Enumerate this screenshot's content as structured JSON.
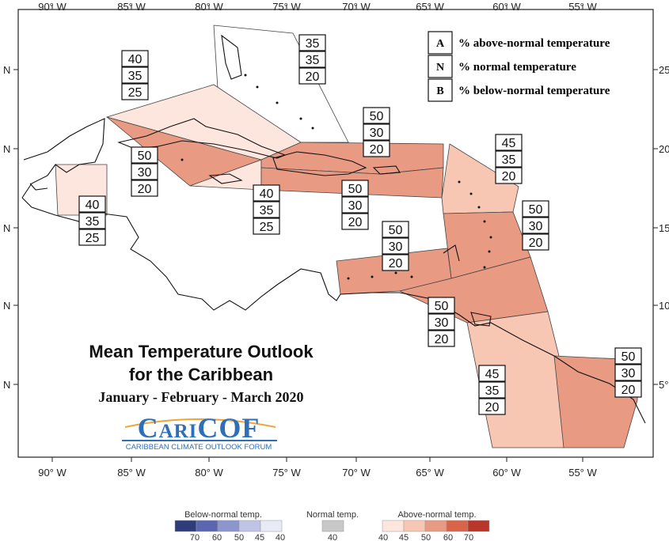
{
  "title_line1": "Mean Temperature Outlook",
  "title_line2": "for the Caribbean",
  "period": "January - February - March 2020",
  "logo_text": "CariCOF",
  "logo_subtitle": "CARIBBEAN CLIMATE OUTLOOK FORUM",
  "lon_ticks": [
    "90° W",
    "85° W",
    "80° W",
    "75° W",
    "70° W",
    "65° W",
    "60° W",
    "55° W"
  ],
  "lat_ticks_left": [
    "N",
    "N",
    "N",
    "N",
    "N"
  ],
  "lat_ticks_right": [
    "25",
    "20",
    "15",
    "10",
    "5°"
  ],
  "legend_key": [
    {
      "letter": "A",
      "text": "% above-normal temperature"
    },
    {
      "letter": "N",
      "text": "% normal temperature"
    },
    {
      "letter": "B",
      "text": "% below-normal temperature"
    }
  ],
  "regions": [
    {
      "id": "bahamas",
      "A": "35",
      "N": "35",
      "B": "20",
      "fill": "#ffffff"
    },
    {
      "id": "cuba",
      "A": "40",
      "N": "35",
      "B": "25",
      "fill": "#fde6dd"
    },
    {
      "id": "belize",
      "A": "40",
      "N": "35",
      "B": "25",
      "fill": "#fde6dd"
    },
    {
      "id": "cayman",
      "A": "50",
      "N": "30",
      "B": "20",
      "fill": "#e99a82"
    },
    {
      "id": "jamaica",
      "A": "40",
      "N": "35",
      "B": "25",
      "fill": "#fde6dd"
    },
    {
      "id": "hispaniola",
      "A": "50",
      "N": "30",
      "B": "20",
      "fill": "#e99a82"
    },
    {
      "id": "puerto-rico",
      "A": "50",
      "N": "30",
      "B": "20",
      "fill": "#e99a82"
    },
    {
      "id": "northern-leewards",
      "A": "45",
      "N": "35",
      "B": "20",
      "fill": "#f8c7b4"
    },
    {
      "id": "southern-leewards",
      "A": "50",
      "N": "30",
      "B": "20",
      "fill": "#e99a82"
    },
    {
      "id": "abc-islands",
      "A": "50",
      "N": "30",
      "B": "20",
      "fill": "#e99a82"
    },
    {
      "id": "trinidad",
      "A": "50",
      "N": "30",
      "B": "20",
      "fill": "#e99a82"
    },
    {
      "id": "guyana",
      "A": "45",
      "N": "35",
      "B": "20",
      "fill": "#f8c7b4"
    },
    {
      "id": "suriname",
      "A": "50",
      "N": "30",
      "B": "20",
      "fill": "#e99a82"
    }
  ],
  "legend": {
    "below_title": "Below-normal temp.",
    "normal_title": "Normal temp.",
    "above_title": "Above-normal temp.",
    "below_colors": [
      "#2e3c7a",
      "#5a67b0",
      "#8c95cc",
      "#bfc4e6",
      "#e8eaf6"
    ],
    "below_ticks": [
      "70",
      "60",
      "50",
      "45",
      "40"
    ],
    "normal_color": "#c8c8c8",
    "normal_tick": "40",
    "above_colors": [
      "#fde6dd",
      "#f8c7b4",
      "#e99a82",
      "#d9644a",
      "#b8372a"
    ],
    "above_ticks": [
      "40",
      "45",
      "50",
      "60",
      "70"
    ]
  }
}
